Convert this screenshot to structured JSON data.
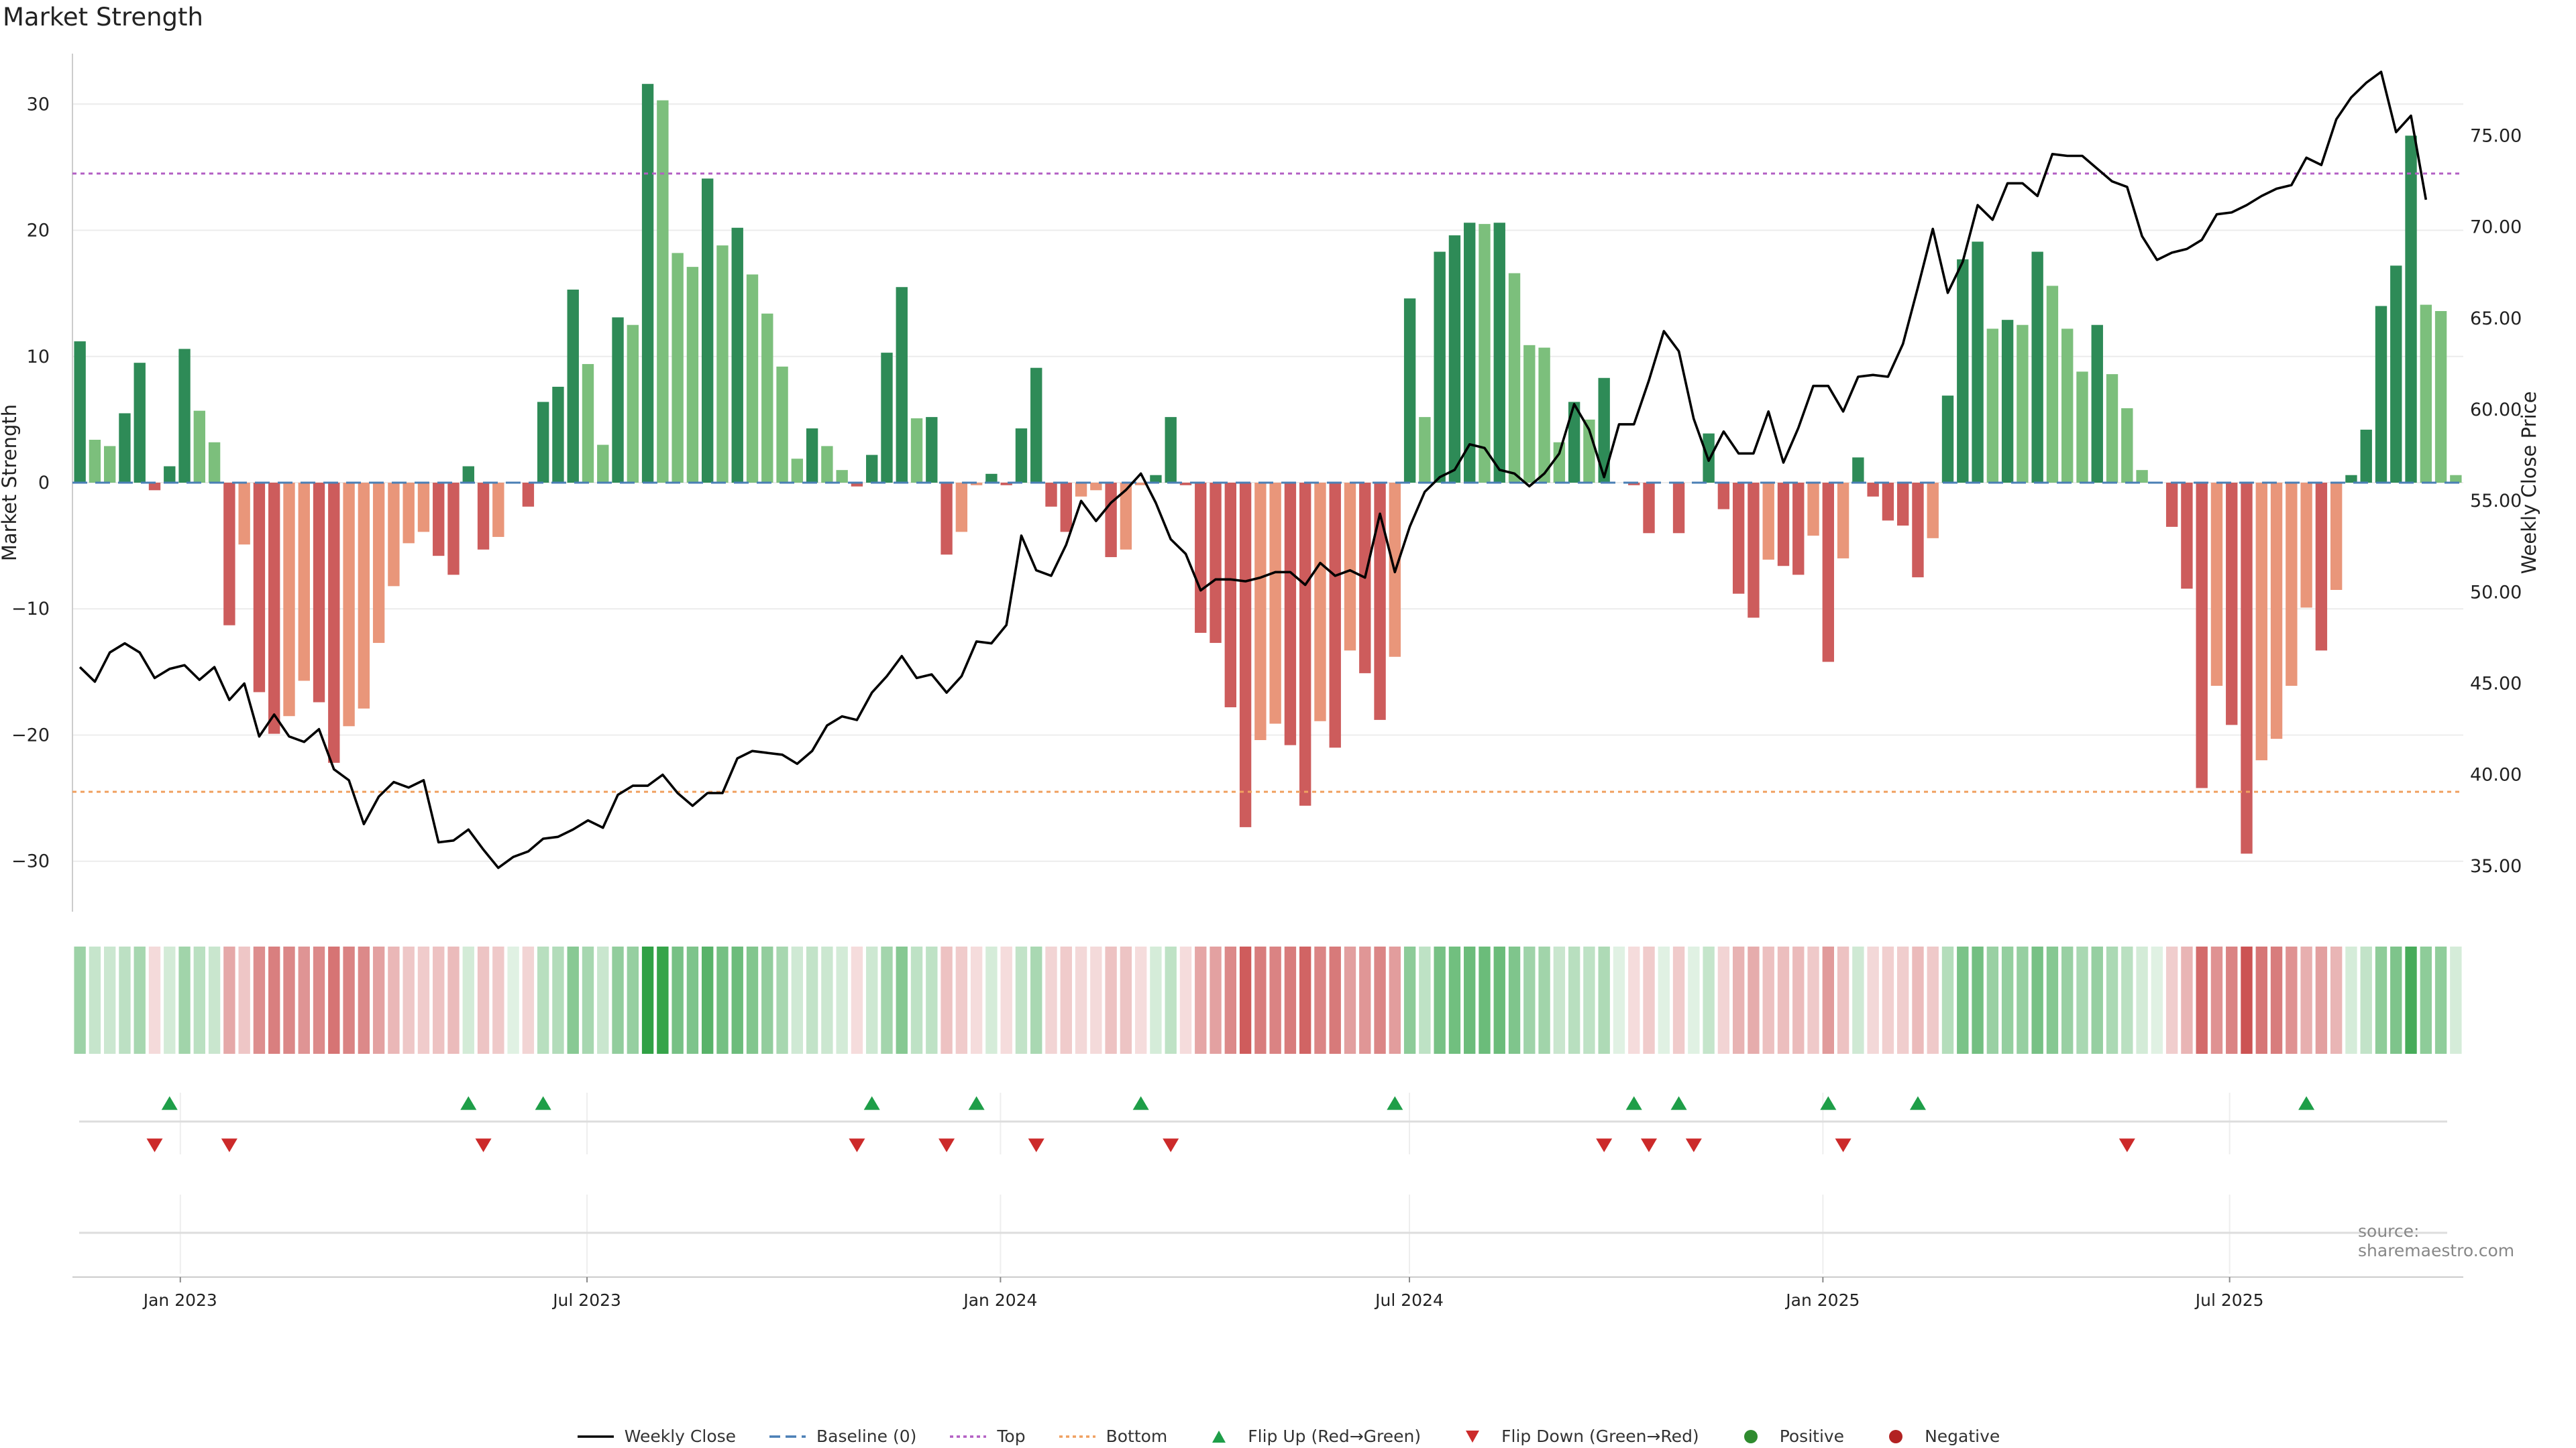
{
  "title": "Market Strength",
  "source_note": "source: sharemaestro.com",
  "legend": [
    {
      "key": "weekly_close",
      "label": "Weekly Close",
      "icon": "solid-line",
      "color": "#000000"
    },
    {
      "key": "baseline",
      "label": "Baseline (0)",
      "icon": "dashed-line",
      "color": "#4a7fb5"
    },
    {
      "key": "top",
      "label": "Top",
      "icon": "dotted-line",
      "color": "#b35fc4"
    },
    {
      "key": "bottom",
      "label": "Bottom",
      "icon": "dotted-line",
      "color": "#f0a060"
    },
    {
      "key": "flip_up",
      "label": "Flip Up (Red→Green)",
      "icon": "triangle-up",
      "color": "#1e9e48"
    },
    {
      "key": "flip_down",
      "label": "Flip Down (Green→Red)",
      "icon": "triangle-down",
      "color": "#cc2a2a"
    },
    {
      "key": "positive",
      "label": "Positive",
      "icon": "circle",
      "color": "#2f8b2f"
    },
    {
      "key": "negative",
      "label": "Negative",
      "icon": "circle",
      "color": "#b22222"
    }
  ],
  "chart_data": {
    "type": "bar",
    "title": "Market Strength",
    "ylabel": "Market Strength",
    "y2label": "Weekly Close Price",
    "ylim": [
      -34,
      34
    ],
    "y2lim": [
      32.5,
      79.5
    ],
    "yticks": [
      30,
      20,
      10,
      0,
      -10,
      -20,
      -30
    ],
    "ytick_labels": [
      "30",
      "20",
      "10",
      "0",
      "−10",
      "−20",
      "−30"
    ],
    "y2ticks": [
      75,
      70,
      65,
      60,
      55,
      50,
      45,
      40,
      35
    ],
    "y2tick_labels": [
      "75.00",
      "70.00",
      "65.00",
      "60.00",
      "55.00",
      "50.00",
      "45.00",
      "40.00",
      "35.00"
    ],
    "x_start": "2022-11-14",
    "x_end": "2025-10-13",
    "xticks": [
      "2023-01-01",
      "2023-07-01",
      "2024-01-01",
      "2024-07-01",
      "2025-01-01",
      "2025-07-01"
    ],
    "xtick_labels": [
      "Jan 2023",
      "Jul 2023",
      "Jan 2024",
      "Jul 2024",
      "Jan 2025",
      "Jul 2025"
    ],
    "top_threshold": 24.5,
    "bottom_threshold": -24.5,
    "bar_colors": {
      "pos_strong": "#2e8b57",
      "pos_weak": "#7cbf7c",
      "neg_strong": "#cd5c5c",
      "neg_weak": "#e9967a"
    },
    "strength": [
      11.2,
      3.4,
      2.9,
      5.5,
      9.5,
      -0.6,
      1.3,
      10.6,
      5.7,
      3.2,
      -11.3,
      -4.9,
      -16.6,
      -19.9,
      -18.5,
      -15.7,
      -17.4,
      -22.2,
      -19.3,
      -17.9,
      -12.7,
      -8.2,
      -4.8,
      -3.9,
      -5.8,
      -7.3,
      1.3,
      -5.3,
      -4.3,
      0,
      -1.9,
      6.4,
      7.6,
      15.3,
      9.4,
      3.0,
      13.1,
      12.5,
      31.6,
      30.3,
      18.2,
      17.1,
      24.1,
      18.8,
      20.2,
      16.5,
      13.4,
      9.2,
      1.9,
      4.3,
      2.9,
      1.0,
      -0.3,
      2.2,
      10.3,
      15.5,
      5.1,
      5.2,
      -5.7,
      -3.9,
      -0.2,
      0.7,
      -0.2,
      4.3,
      9.1,
      -1.9,
      -3.9,
      -1.1,
      -0.6,
      -5.9,
      -5.3,
      -0.2,
      0.6,
      5.2,
      -0.2,
      -11.9,
      -12.7,
      -17.8,
      -27.3,
      -20.4,
      -19.1,
      -20.8,
      -25.6,
      -18.9,
      -21.0,
      -13.3,
      -15.1,
      -18.8,
      -13.8,
      14.6,
      5.2,
      18.3,
      19.6,
      20.6,
      20.5,
      20.6,
      16.6,
      10.9,
      10.7,
      3.2,
      6.4,
      5.0,
      8.3,
      0,
      -0.2,
      -4.0,
      0,
      -4.0,
      0,
      3.9,
      -2.1,
      -8.8,
      -10.7,
      -6.1,
      -6.6,
      -7.3,
      -4.2,
      -14.2,
      -6.0,
      2.0,
      -1.1,
      -3.0,
      -3.4,
      -7.5,
      -4.4,
      6.9,
      17.7,
      19.1,
      12.2,
      12.9,
      12.5,
      18.3,
      15.6,
      12.2,
      8.8,
      12.5,
      8.6,
      5.9,
      1.0,
      0,
      -3.5,
      -8.4,
      -24.2,
      -16.1,
      -19.2,
      -29.4,
      -22.0,
      -20.3,
      -16.1,
      -9.9,
      -13.3,
      -8.5,
      0.6,
      4.2,
      14.0,
      17.2,
      27.5,
      14.1,
      13.6,
      0.6
    ],
    "strength_color_rule": "positive bars: alternate strong/weak green by momentum; negative bars: strong/weak red",
    "weekly_close": [
      45.9,
      45.1,
      46.7,
      47.2,
      46.7,
      45.3,
      45.8,
      46.0,
      45.2,
      45.9,
      44.1,
      45.0,
      42.1,
      43.3,
      42.1,
      41.8,
      42.5,
      40.3,
      39.7,
      37.3,
      38.8,
      39.6,
      39.3,
      39.7,
      36.3,
      36.4,
      37.0,
      35.9,
      34.9,
      35.5,
      35.8,
      36.5,
      36.6,
      37.0,
      37.5,
      37.1,
      38.9,
      39.4,
      39.4,
      40.0,
      39.0,
      38.3,
      39.0,
      39.0,
      40.9,
      41.3,
      41.2,
      41.1,
      40.6,
      41.3,
      42.7,
      43.2,
      43.0,
      44.5,
      45.4,
      46.5,
      45.3,
      45.5,
      44.5,
      45.4,
      47.3,
      47.2,
      48.2,
      53.1,
      51.2,
      50.9,
      52.6,
      55.0,
      53.9,
      54.9,
      55.6,
      56.5,
      54.9,
      52.9,
      52.1,
      50.1,
      50.7,
      50.7,
      50.6,
      50.8,
      51.1,
      51.1,
      50.4,
      51.6,
      50.9,
      51.2,
      50.8,
      54.3,
      51.1,
      53.6,
      55.5,
      56.3,
      56.7,
      58.1,
      57.9,
      56.7,
      56.5,
      55.8,
      56.5,
      57.6,
      60.3,
      58.9,
      56.3,
      59.2,
      59.2,
      61.6,
      64.3,
      63.2,
      59.5,
      57.2,
      58.8,
      57.6,
      57.6,
      59.9,
      57.1,
      59.0,
      61.3,
      61.3,
      59.9,
      61.8,
      61.9,
      61.8,
      63.6,
      66.7,
      69.9,
      66.4,
      68.1,
      71.2,
      70.4,
      72.4,
      72.4,
      71.7,
      74.0,
      73.9,
      73.9,
      73.2,
      72.5,
      72.2,
      69.5,
      68.2,
      68.6,
      68.8,
      69.3,
      70.7,
      70.8,
      71.2,
      71.7,
      72.1,
      72.3,
      73.8,
      73.4,
      75.9,
      77.1,
      77.9,
      78.5,
      75.2,
      76.1,
      71.5
    ],
    "flip_up_weeks": [
      6,
      26,
      31,
      53,
      60,
      71,
      88,
      104,
      107,
      117,
      123,
      149
    ],
    "flip_down_weeks": [
      5,
      10,
      27,
      52,
      58,
      64,
      73,
      102,
      105,
      108,
      118,
      137
    ],
    "heat_rule": "per-week strip colour intensity proportional to |strength|; green if positive, red if negative"
  }
}
